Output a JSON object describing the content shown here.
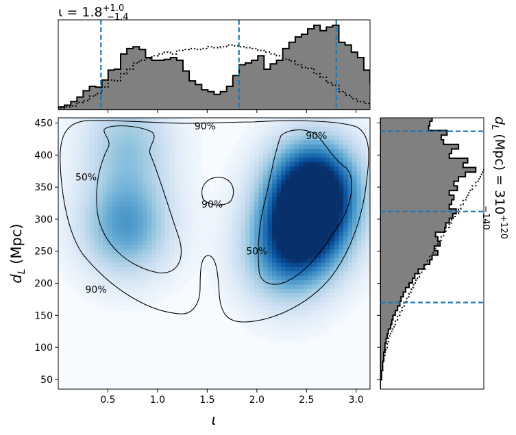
{
  "chart_data": [
    {
      "type": "heatmap",
      "panel": "joint-density",
      "xlabel": "ι",
      "ylabel": "d_L (Mpc)",
      "xlim": [
        0.0,
        3.14
      ],
      "ylim": [
        35,
        458
      ],
      "xticks": [
        0.5,
        1.0,
        1.5,
        2.0,
        2.5,
        3.0
      ],
      "xtick_labels": [
        "0.5",
        "1.0",
        "1.5",
        "2.0",
        "2.5",
        "3.0"
      ],
      "yticks": [
        50,
        100,
        150,
        200,
        250,
        300,
        350,
        400,
        450
      ],
      "ytick_labels": [
        "50",
        "100",
        "150",
        "200",
        "250",
        "300",
        "350",
        "400",
        "450"
      ],
      "colormap": "Blues",
      "density_peaks": [
        {
          "x": 0.68,
          "y": 290,
          "weight": 0.55
        },
        {
          "x": 0.7,
          "y": 420,
          "weight": 0.35
        },
        {
          "x": 2.5,
          "y": 290,
          "weight": 0.75
        },
        {
          "x": 2.58,
          "y": 352,
          "weight": 0.95
        },
        {
          "x": 2.28,
          "y": 240,
          "weight": 0.45
        }
      ],
      "contour_labels": [
        {
          "text": "90%",
          "x": 1.48,
          "y": 440
        },
        {
          "text": "90%",
          "x": 2.6,
          "y": 425
        },
        {
          "text": "90%",
          "x": 1.55,
          "y": 318
        },
        {
          "text": "90%",
          "x": 0.38,
          "y": 185
        },
        {
          "text": "50%",
          "x": 0.28,
          "y": 360
        },
        {
          "text": "50%",
          "x": 2.0,
          "y": 245
        }
      ]
    },
    {
      "type": "bar",
      "panel": "marginal-iota",
      "title": "ι = 1.8",
      "title_sup": "+1.0",
      "title_sub": "−1.4",
      "xlim": [
        0.0,
        3.14
      ],
      "ylim": [
        0,
        1.0
      ],
      "bin_width": 0.0628,
      "posterior_values": [
        0.03,
        0.05,
        0.09,
        0.14,
        0.21,
        0.26,
        0.25,
        0.33,
        0.44,
        0.45,
        0.62,
        0.68,
        0.7,
        0.67,
        0.58,
        0.55,
        0.55,
        0.56,
        0.58,
        0.55,
        0.43,
        0.32,
        0.28,
        0.22,
        0.2,
        0.17,
        0.2,
        0.26,
        0.38,
        0.5,
        0.52,
        0.55,
        0.6,
        0.45,
        0.51,
        0.55,
        0.68,
        0.75,
        0.81,
        0.84,
        0.9,
        0.94,
        0.88,
        0.92,
        0.94,
        0.75,
        0.72,
        0.64,
        0.58,
        0.44,
        0.3,
        0.18,
        0.12
      ],
      "prior_values": [
        0.02,
        0.03,
        0.04,
        0.08,
        0.1,
        0.15,
        0.18,
        0.25,
        0.33,
        0.32,
        0.4,
        0.45,
        0.52,
        0.55,
        0.57,
        0.6,
        0.62,
        0.64,
        0.62,
        0.66,
        0.67,
        0.68,
        0.67,
        0.68,
        0.7,
        0.69,
        0.7,
        0.72,
        0.71,
        0.7,
        0.69,
        0.68,
        0.66,
        0.64,
        0.62,
        0.6,
        0.56,
        0.54,
        0.5,
        0.47,
        0.46,
        0.4,
        0.36,
        0.3,
        0.27,
        0.2,
        0.16,
        0.12,
        0.09,
        0.07,
        0.05,
        0.03,
        0.02
      ],
      "credible_lines": [
        0.43,
        1.82,
        2.8
      ]
    },
    {
      "type": "bar",
      "panel": "marginal-distance",
      "orientation": "horizontal",
      "label": "d_L (Mpc) = 310",
      "label_sup": "+120",
      "label_sub": "−140",
      "ylim": [
        35,
        458
      ],
      "bin_height": 7.2,
      "posterior_values": [
        0.0,
        0.0,
        0.01,
        0.01,
        0.02,
        0.02,
        0.03,
        0.03,
        0.04,
        0.04,
        0.05,
        0.06,
        0.07,
        0.09,
        0.1,
        0.11,
        0.13,
        0.15,
        0.17,
        0.18,
        0.2,
        0.22,
        0.25,
        0.28,
        0.3,
        0.33,
        0.38,
        0.43,
        0.45,
        0.5,
        0.47,
        0.52,
        0.5,
        0.48,
        0.56,
        0.57,
        0.6,
        0.63,
        0.66,
        0.6,
        0.62,
        0.64,
        0.6,
        0.67,
        0.64,
        0.68,
        0.74,
        0.83,
        0.72,
        0.76,
        0.6,
        0.62,
        0.68,
        0.55,
        0.53,
        0.58,
        0.42,
        0.43,
        0.45,
        0.5
      ],
      "prior_values": [
        0.0,
        0.0,
        0.01,
        0.01,
        0.02,
        0.02,
        0.03,
        0.04,
        0.05,
        0.06,
        0.07,
        0.08,
        0.1,
        0.12,
        0.13,
        0.15,
        0.17,
        0.19,
        0.21,
        0.23,
        0.25,
        0.27,
        0.29,
        0.31,
        0.34,
        0.36,
        0.39,
        0.41,
        0.43,
        0.46,
        0.48,
        0.5,
        0.53,
        0.55,
        0.57,
        0.6,
        0.62,
        0.65,
        0.68,
        0.7,
        0.72,
        0.75,
        0.77,
        0.8,
        0.83,
        0.86,
        0.88,
        0.9,
        0.93,
        0.96,
        1.0,
        1.03,
        1.06,
        1.1,
        1.13,
        1.17,
        1.2,
        1.25,
        1.3,
        1.36
      ],
      "credible_lines": [
        170,
        312,
        437
      ]
    }
  ]
}
